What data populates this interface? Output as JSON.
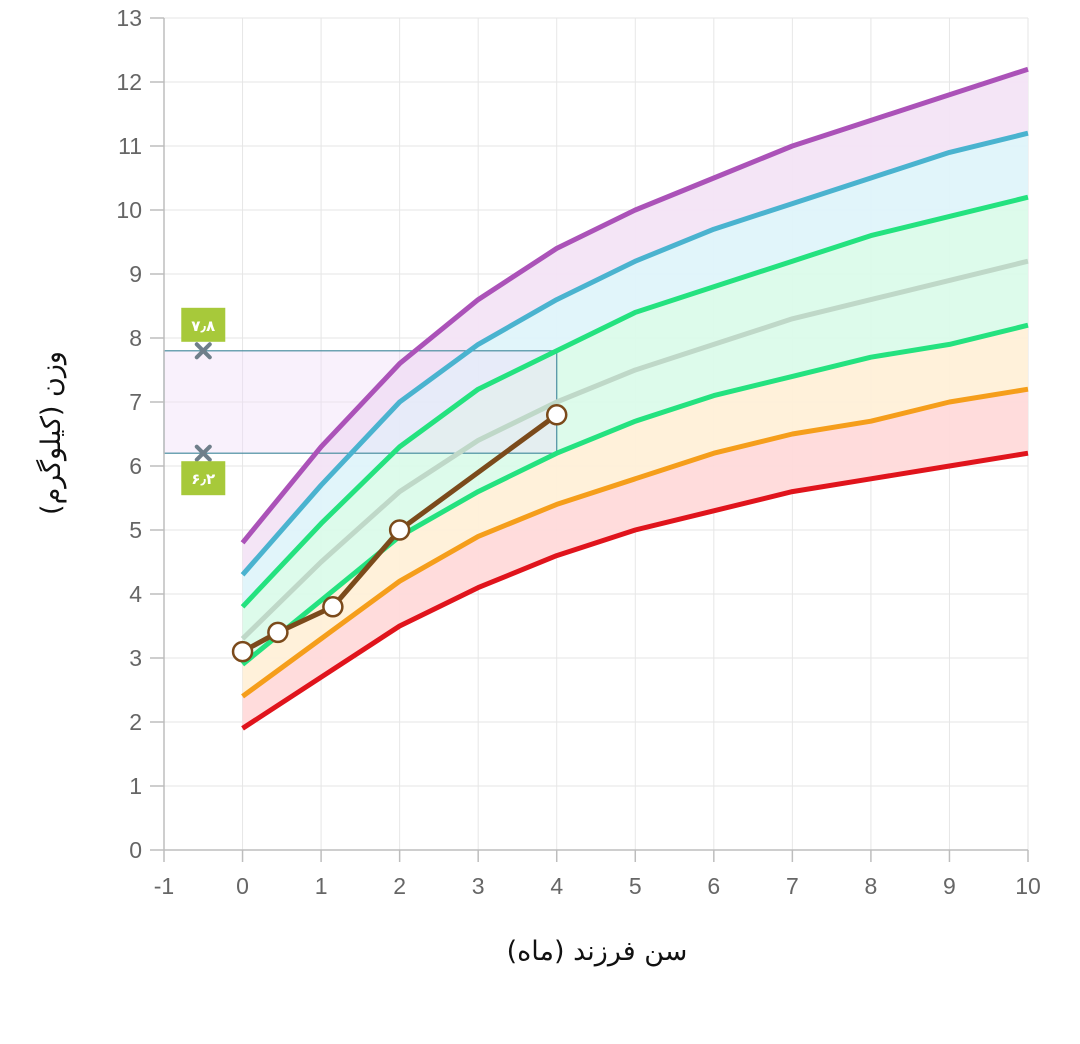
{
  "chart_data": {
    "type": "line",
    "xlabel": "سن فرزند (ماه)",
    "ylabel": "وزن (کیلوگرم)",
    "xlim": [
      -1,
      10
    ],
    "ylim": [
      0,
      13
    ],
    "x_ticks": [
      -1,
      0,
      1,
      2,
      3,
      4,
      5,
      6,
      7,
      8,
      9,
      10
    ],
    "y_ticks": [
      0,
      1,
      2,
      3,
      4,
      5,
      6,
      7,
      8,
      9,
      10,
      11,
      12,
      13
    ],
    "grid": true,
    "reference_x": [
      0,
      1,
      2,
      3,
      4,
      5,
      6,
      7,
      8,
      9,
      10
    ],
    "reference_curves": [
      {
        "name": "curve-1",
        "color": "#e0141c",
        "band_color": "#ffdada",
        "values": [
          1.9,
          2.7,
          3.5,
          4.1,
          4.6,
          5.0,
          5.3,
          5.6,
          5.8,
          6.0,
          6.2
        ]
      },
      {
        "name": "curve-2",
        "color": "#f59e1b",
        "band_color": "#fff0d8",
        "values": [
          2.4,
          3.3,
          4.2,
          4.9,
          5.4,
          5.8,
          6.2,
          6.5,
          6.7,
          7.0,
          7.2
        ]
      },
      {
        "name": "curve-3",
        "color": "#24e27f",
        "band_color": "#dbfbea",
        "values": [
          2.9,
          3.9,
          4.9,
          5.6,
          6.2,
          6.7,
          7.1,
          7.4,
          7.7,
          7.9,
          8.2
        ]
      },
      {
        "name": "curve-4",
        "color": "#bfd8c8",
        "band_color": "#dbfbea",
        "values": [
          3.3,
          4.5,
          5.6,
          6.4,
          7.0,
          7.5,
          7.9,
          8.3,
          8.6,
          8.9,
          9.2
        ]
      },
      {
        "name": "curve-5",
        "color": "#24e27f",
        "band_color": "#dff4fa",
        "values": [
          3.8,
          5.1,
          6.3,
          7.2,
          7.8,
          8.4,
          8.8,
          9.2,
          9.6,
          9.9,
          10.2
        ]
      },
      {
        "name": "curve-6",
        "color": "#4ab3cf",
        "band_color": "#f3e4f6",
        "values": [
          4.3,
          5.7,
          7.0,
          7.9,
          8.6,
          9.2,
          9.7,
          10.1,
          10.5,
          10.9,
          11.2
        ]
      },
      {
        "name": "curve-7",
        "color": "#ab52b8",
        "band_color": null,
        "values": [
          4.8,
          6.3,
          7.6,
          8.6,
          9.4,
          10.0,
          10.5,
          11.0,
          11.4,
          11.8,
          12.2
        ]
      }
    ],
    "series": [
      {
        "name": "child-weight",
        "color": "#7b4a1b",
        "x": [
          0,
          0.45,
          1.15,
          2,
          4
        ],
        "values": [
          3.1,
          3.4,
          3.8,
          5.0,
          6.8
        ]
      }
    ],
    "healthy_range": {
      "min": 6.2,
      "max": 7.8,
      "x_end": 4,
      "marker_x": -0.5,
      "min_label": "۶٫۲",
      "max_label": "۷٫۸"
    }
  }
}
